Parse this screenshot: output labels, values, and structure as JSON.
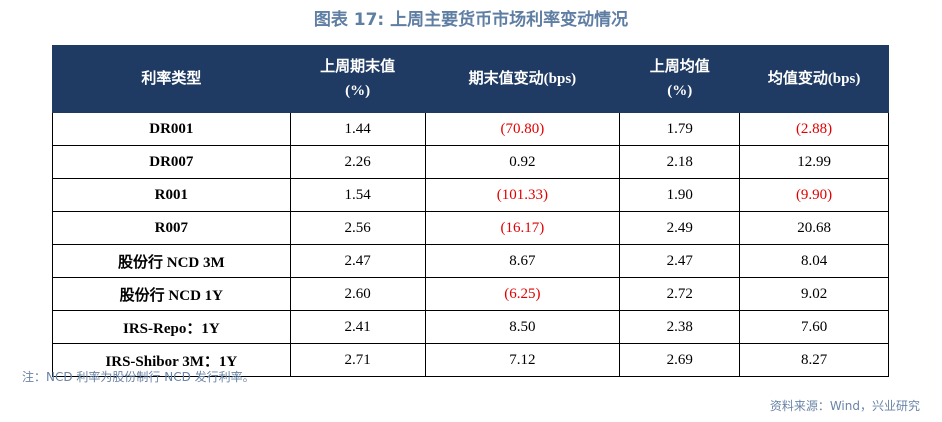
{
  "title": "图表 17: 上周主要货币市场利率变动情况",
  "table": {
    "header": [
      [
        "利率类型"
      ],
      [
        "上周期末值",
        "(%)"
      ],
      [
        "期末值变动(bps)"
      ],
      [
        "上周均值",
        "(%)"
      ],
      [
        "均值变动(bps)"
      ]
    ],
    "rows": [
      [
        "DR001",
        "1.44",
        "(70.80)",
        "1.79",
        "(2.88)"
      ],
      [
        "DR007",
        "2.26",
        "0.92",
        "2.18",
        "12.99"
      ],
      [
        "R001",
        "1.54",
        "(101.33)",
        "1.90",
        "(9.90)"
      ],
      [
        "R007",
        "2.56",
        "(16.17)",
        "2.49",
        "20.68"
      ],
      [
        "股份行 NCD 3M",
        "2.47",
        "8.67",
        "2.47",
        "8.04"
      ],
      [
        "股份行 NCD 1Y",
        "2.60",
        "(6.25)",
        "2.72",
        "9.02"
      ],
      [
        "IRS-Repo：1Y",
        "2.41",
        "8.50",
        "2.38",
        "7.60"
      ],
      [
        "IRS-Shibor 3M：1Y",
        "2.71",
        "7.12",
        "2.69",
        "8.27"
      ]
    ]
  },
  "note": "注：NCD 利率为股份制行 NCD 发行利率。",
  "source": "资料来源：Wind，兴业研究"
}
